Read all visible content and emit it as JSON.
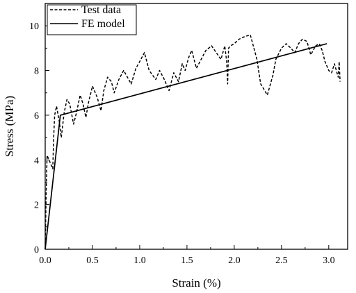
{
  "chart_data": {
    "type": "line",
    "xlabel": "Strain (%)",
    "ylabel": "Stress (MPa)",
    "xlim": [
      0,
      3.2
    ],
    "ylim": [
      0,
      11
    ],
    "xticks": [
      {
        "value": 0.0,
        "label": "0.0"
      },
      {
        "value": 0.5,
        "label": "0.5"
      },
      {
        "value": 1.0,
        "label": "1.0"
      },
      {
        "value": 1.5,
        "label": "1.5"
      },
      {
        "value": 2.0,
        "label": "2.0"
      },
      {
        "value": 2.5,
        "label": "2.5"
      },
      {
        "value": 3.0,
        "label": "3.0"
      }
    ],
    "yticks": [
      {
        "value": 0,
        "label": "0"
      },
      {
        "value": 2,
        "label": "2"
      },
      {
        "value": 4,
        "label": "4"
      },
      {
        "value": 6,
        "label": "6"
      },
      {
        "value": 8,
        "label": "8"
      },
      {
        "value": 10,
        "label": "10"
      }
    ],
    "legend_position": "top-left",
    "series": [
      {
        "name": "Test data",
        "style": "dashed",
        "color": "#000000",
        "x": [
          0.0,
          0.01,
          0.02,
          0.03,
          0.06,
          0.08,
          0.09,
          0.1,
          0.12,
          0.15,
          0.17,
          0.2,
          0.23,
          0.26,
          0.3,
          0.33,
          0.37,
          0.4,
          0.43,
          0.46,
          0.5,
          0.55,
          0.59,
          0.62,
          0.66,
          0.7,
          0.73,
          0.78,
          0.83,
          0.87,
          0.91,
          0.96,
          1.0,
          1.05,
          1.1,
          1.17,
          1.21,
          1.26,
          1.31,
          1.36,
          1.41,
          1.45,
          1.48,
          1.52,
          1.55,
          1.6,
          1.65,
          1.7,
          1.76,
          1.81,
          1.86,
          1.9,
          1.92,
          1.93,
          1.94,
          1.96,
          2.0,
          2.05,
          2.1,
          2.17,
          2.24,
          2.28,
          2.35,
          2.41,
          2.44,
          2.5,
          2.55,
          2.6,
          2.64,
          2.68,
          2.72,
          2.77,
          2.81,
          2.86,
          2.9,
          2.93,
          2.96,
          3.0,
          3.03,
          3.06,
          3.08,
          3.1,
          3.11,
          3.12
        ],
        "y": [
          0.0,
          2.5,
          4.2,
          4.1,
          3.8,
          3.6,
          5.0,
          6.0,
          6.4,
          5.7,
          5.0,
          6.1,
          6.7,
          6.5,
          5.6,
          6.1,
          6.9,
          6.5,
          5.9,
          6.6,
          7.3,
          6.8,
          6.2,
          7.1,
          7.7,
          7.5,
          7.0,
          7.6,
          8.0,
          7.7,
          7.4,
          8.1,
          8.4,
          8.8,
          8.0,
          7.6,
          8.0,
          7.6,
          7.1,
          7.9,
          7.5,
          8.3,
          8.0,
          8.6,
          8.9,
          8.1,
          8.5,
          8.9,
          9.1,
          8.8,
          8.5,
          9.1,
          8.4,
          7.4,
          9.0,
          9.1,
          9.2,
          9.4,
          9.5,
          9.6,
          8.5,
          7.4,
          6.9,
          7.8,
          8.5,
          9.0,
          9.2,
          9.0,
          8.8,
          9.2,
          9.4,
          9.3,
          8.7,
          9.1,
          9.2,
          8.9,
          8.4,
          8.0,
          7.9,
          8.3,
          8.0,
          7.7,
          8.4,
          7.5
        ]
      },
      {
        "name": "FE model",
        "style": "solid",
        "color": "#000000",
        "x": [
          0.0,
          0.16,
          2.98
        ],
        "y": [
          0.0,
          6.0,
          9.2
        ]
      }
    ]
  }
}
